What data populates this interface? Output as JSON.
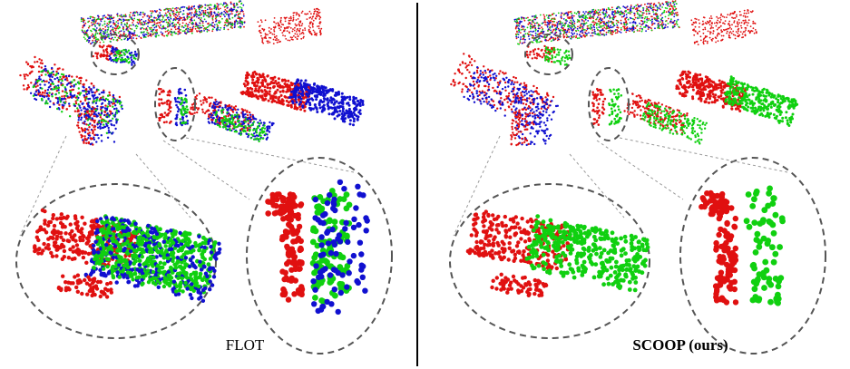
{
  "panels": {
    "left": {
      "caption": "FLOT"
    },
    "right": {
      "caption": "SCOOP (ours)"
    }
  },
  "colors": {
    "source_points": "#e01010",
    "target_points": "#1010d0",
    "warped_points": "#10d010",
    "zoom_outline": "#555555",
    "divider": "#000000"
  }
}
